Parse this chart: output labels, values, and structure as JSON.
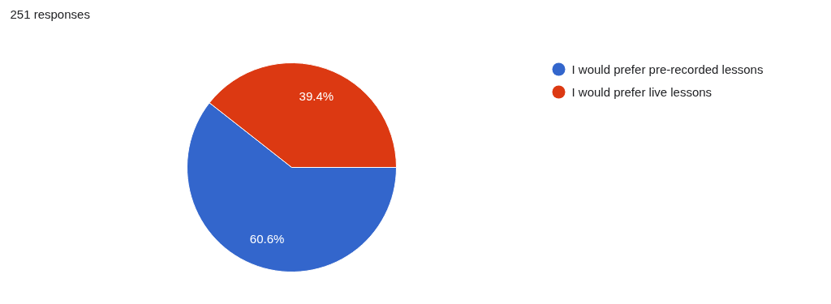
{
  "chart_data": {
    "type": "pie",
    "title": "251 responses",
    "categories": [
      "I would prefer pre-recorded lessons",
      "I would prefer live lessons"
    ],
    "values": [
      60.6,
      39.4
    ],
    "colors": [
      "#3366cc",
      "#dc3912"
    ],
    "value_labels": [
      "60.6%",
      "39.4%"
    ],
    "legend": "right"
  }
}
